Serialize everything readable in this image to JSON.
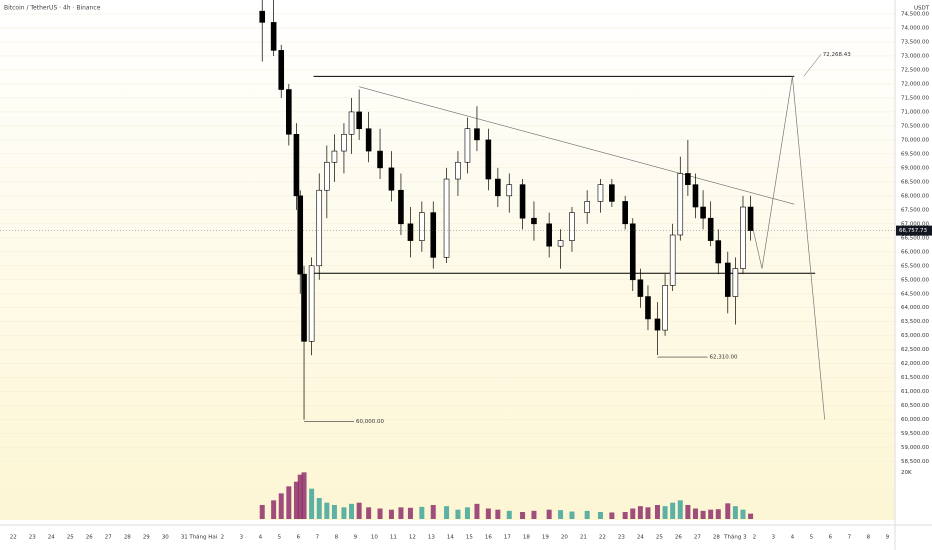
{
  "chart_data": {
    "type": "candlestick",
    "title": "Bitcoin / TetherUS · 4h · Binance",
    "unit": "USDT",
    "categories": [
      "22",
      "23",
      "24",
      "25",
      "26",
      "27",
      "28",
      "29",
      "30",
      "31",
      "Tháng Hai",
      "2",
      "3",
      "4",
      "5",
      "6",
      "7",
      "8",
      "9",
      "10",
      "11",
      "12",
      "13",
      "14",
      "15",
      "16",
      "17",
      "18",
      "19",
      "20",
      "21",
      "22",
      "23",
      "24",
      "25",
      "26",
      "27",
      "28",
      "Tháng 3",
      "2",
      "3",
      "4",
      "5",
      "6",
      "7",
      "8",
      "9"
    ],
    "xlim": [
      -0.7,
      46.4
    ],
    "ylim": [
      58200,
      75000
    ],
    "yticks": [
      {
        "value": 58500,
        "label": "58,500.00"
      },
      {
        "value": 59000,
        "label": "59,000.00"
      },
      {
        "value": 59500,
        "label": "59,500.00"
      },
      {
        "value": 60000,
        "label": "60,000.00"
      },
      {
        "value": 60500,
        "label": "60,500.00"
      },
      {
        "value": 61000,
        "label": "61,000.00"
      },
      {
        "value": 61500,
        "label": "61,500.00"
      },
      {
        "value": 62000,
        "label": "62,000.00"
      },
      {
        "value": 62500,
        "label": "62,500.00"
      },
      {
        "value": 63000,
        "label": "63,000.00"
      },
      {
        "value": 63500,
        "label": "63,500.00"
      },
      {
        "value": 64000,
        "label": "64,000.00"
      },
      {
        "value": 64500,
        "label": "64,500.00"
      },
      {
        "value": 65000,
        "label": "65,000.00"
      },
      {
        "value": 65500,
        "label": "65,500.00"
      },
      {
        "value": 66000,
        "label": "66,000.00"
      },
      {
        "value": 66500,
        "label": "66,500.00"
      },
      {
        "value": 67000,
        "label": "67,000.00"
      },
      {
        "value": 67500,
        "label": "67,500.00"
      },
      {
        "value": 68000,
        "label": "68,000.00"
      },
      {
        "value": 68500,
        "label": "68,500.00"
      },
      {
        "value": 69000,
        "label": "69,000.00"
      },
      {
        "value": 69500,
        "label": "69,500.00"
      },
      {
        "value": 70000,
        "label": "70,000.00"
      },
      {
        "value": 70500,
        "label": "70,500.00"
      },
      {
        "value": 71000,
        "label": "71,000.00"
      },
      {
        "value": 71500,
        "label": "71,500.00"
      },
      {
        "value": 72000,
        "label": "72,000.00"
      },
      {
        "value": 72500,
        "label": "72,500.00"
      },
      {
        "value": 73000,
        "label": "73,000.00"
      },
      {
        "value": 73500,
        "label": "73,500.00"
      },
      {
        "value": 74000,
        "label": "74,000.00"
      },
      {
        "value": 74500,
        "label": "74,500.00"
      }
    ],
    "grid": true,
    "up_color": "#ffffff",
    "down_color": "#000000",
    "x": [
      13.1,
      13.7,
      14.1,
      14.5,
      14.9,
      15.1,
      15.3,
      15.7,
      16.1,
      16.5,
      16.9,
      17.4,
      17.8,
      18.2,
      18.7,
      19.3,
      19.9,
      20.4,
      20.9,
      21.5,
      22.1,
      22.8,
      23.4,
      23.9,
      24.4,
      25.0,
      25.5,
      26.1,
      26.8,
      27.4,
      28.2,
      28.8,
      29.4,
      30.2,
      30.9,
      31.5,
      32.2,
      32.6,
      33.0,
      33.4,
      33.9,
      34.3,
      34.7,
      35.1,
      35.5,
      35.9,
      36.3,
      36.7,
      37.1,
      37.6,
      38.0,
      38.4,
      38.8
    ],
    "open": [
      74600,
      74200,
      73200,
      71800,
      70200,
      68000,
      65200,
      62800,
      65500,
      68200,
      69200,
      69600,
      70200,
      71000,
      70400,
      69600,
      69000,
      68200,
      67000,
      66400,
      67400,
      65800,
      68600,
      69200,
      70400,
      70000,
      68600,
      68000,
      68400,
      67200,
      67000,
      66200,
      66400,
      67400,
      67800,
      68400,
      67800,
      67000,
      65000,
      64400,
      63600,
      63200,
      64800,
      66600,
      68800,
      68400,
      67600,
      67200,
      66400,
      65600,
      64400,
      65400,
      67600
    ],
    "high": [
      75000,
      75000,
      73400,
      72000,
      70600,
      68200,
      65500,
      65800,
      68800,
      69800,
      70200,
      70600,
      71500,
      71800,
      71000,
      70400,
      69600,
      68800,
      67600,
      67800,
      67800,
      69000,
      69600,
      70800,
      71200,
      70400,
      69000,
      68800,
      68600,
      67800,
      67400,
      66800,
      67600,
      68200,
      68600,
      68600,
      68000,
      67200,
      65400,
      64800,
      64200,
      65200,
      67000,
      69400,
      70000,
      68800,
      68200,
      67800,
      66800,
      66000,
      65800,
      68000,
      68000
    ],
    "low": [
      72800,
      73000,
      71500,
      69800,
      67500,
      64500,
      60000,
      62300,
      65000,
      67200,
      68500,
      68800,
      69500,
      70000,
      69200,
      68600,
      67800,
      66600,
      65800,
      66000,
      65400,
      65600,
      68000,
      68800,
      69600,
      68200,
      67600,
      67400,
      66800,
      66400,
      65800,
      65400,
      66000,
      67000,
      67400,
      67600,
      66800,
      64600,
      64000,
      63200,
      62310,
      63000,
      64600,
      66400,
      68000,
      67200,
      66800,
      66200,
      65200,
      63800,
      63400,
      65200,
      66400
    ],
    "close": [
      74200,
      73200,
      71800,
      70200,
      68000,
      65200,
      62800,
      65500,
      68200,
      69200,
      69600,
      70200,
      71000,
      70400,
      69600,
      69000,
      68200,
      67000,
      66400,
      67400,
      65800,
      68600,
      69200,
      70400,
      70000,
      68600,
      68000,
      68400,
      67200,
      67000,
      66200,
      66400,
      67400,
      67800,
      68400,
      67800,
      67000,
      65000,
      64400,
      63600,
      63200,
      64800,
      66600,
      68800,
      68400,
      67600,
      67200,
      66400,
      65600,
      64400,
      65400,
      67600,
      66757.73
    ],
    "last_price": {
      "value": 66757.73,
      "label": "66,757.73"
    },
    "levels": [
      {
        "value": 72268.43,
        "label": "72,268.43"
      },
      {
        "value": 65235
      }
    ],
    "lows": [
      {
        "value": 62310,
        "label": "62,310.00"
      },
      {
        "value": 60000,
        "label": "60,000.00"
      }
    ],
    "trend_line": {
      "x": [
        18.2,
        41.1
      ],
      "y": [
        71900,
        67700
      ]
    },
    "projection": {
      "x": [
        38.9,
        39.4,
        41.0,
        42.7
      ],
      "y": [
        66900,
        65400,
        72268.43,
        60000
      ]
    },
    "volume": {
      "ylim": [
        0,
        21000
      ],
      "yticks": [
        {
          "value": 20000,
          "label": "20K"
        }
      ],
      "up_color": "#3fa39b",
      "down_color": "#8e2f6b",
      "values": [
        6000,
        8000,
        11000,
        14000,
        16000,
        19000,
        20000,
        13000,
        9000,
        7000,
        6000,
        5000,
        6500,
        7000,
        5000,
        4500,
        4000,
        5000,
        4800,
        5200,
        6000,
        5500,
        4000,
        5000,
        6500,
        4500,
        4000,
        3500,
        3000,
        3500,
        4000,
        3800,
        3200,
        3500,
        3000,
        2800,
        3000,
        4500,
        5500,
        5000,
        6000,
        5500,
        7000,
        8000,
        6000,
        4500,
        3500,
        4000,
        4200,
        6720,
        5500,
        4000,
        2300
      ]
    }
  }
}
